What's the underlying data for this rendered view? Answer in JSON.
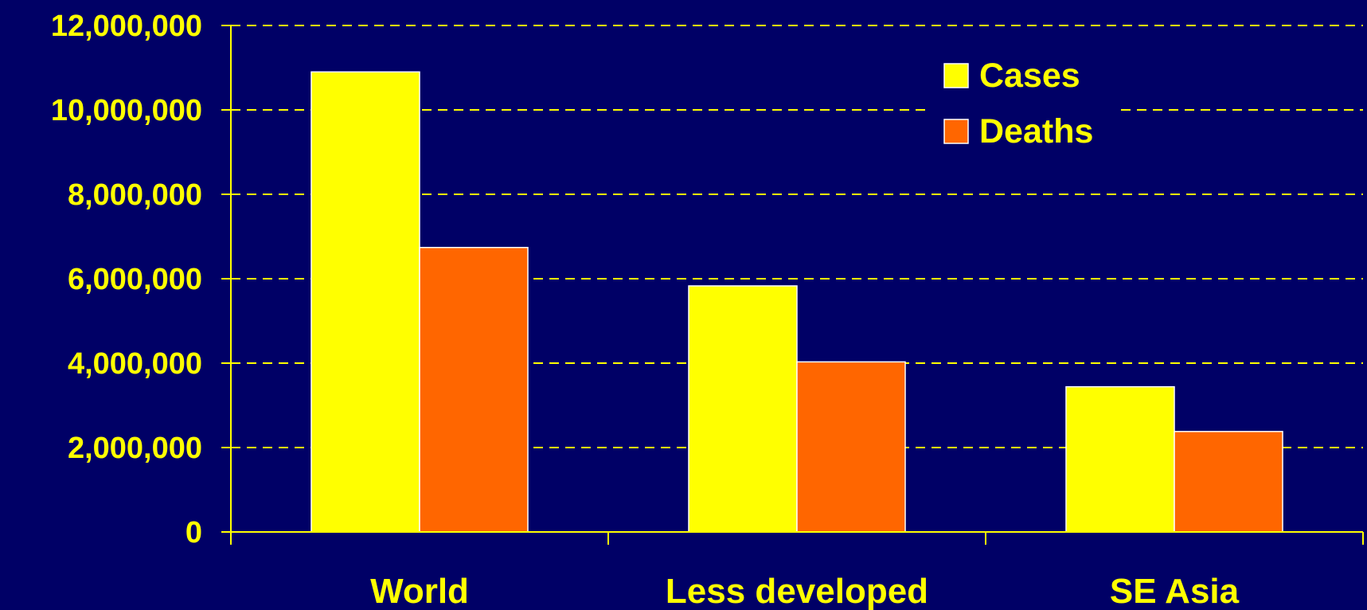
{
  "chart_data": {
    "type": "bar",
    "categories": [
      "World",
      "Less developed",
      "SE Asia"
    ],
    "series": [
      {
        "name": "Cases",
        "values": [
          10900000,
          5830000,
          3440000
        ]
      },
      {
        "name": "Deaths",
        "values": [
          6740000,
          4030000,
          2380000
        ]
      }
    ],
    "ylim": [
      0,
      12000000
    ],
    "yticks": [
      0,
      2000000,
      4000000,
      6000000,
      8000000,
      10000000,
      12000000
    ],
    "ytick_labels": [
      "0",
      "2,000,000",
      "4,000,000",
      "6,000,000",
      "8,000,000",
      "10,000,000",
      "12,000,000"
    ],
    "grid": "dashed horizontal",
    "legend": "top-right",
    "title": "",
    "xlabel": "",
    "ylabel": ""
  },
  "colors": {
    "background": "#000066",
    "axis": "#FFFF00",
    "text": "#FFFF00",
    "grid": "#FFFF00",
    "cases": "#FFFF00",
    "deaths": "#FF6600",
    "bar_edge": "#FFFFFF"
  }
}
